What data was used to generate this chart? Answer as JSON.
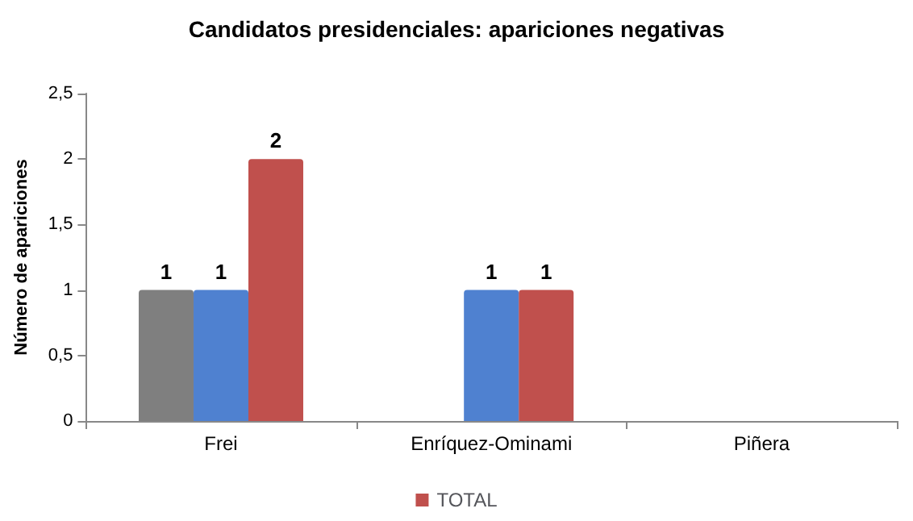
{
  "chart_data": {
    "type": "bar",
    "title": "Candidatos presidenciales: apariciones negativas",
    "ylabel": "Número de apariciones",
    "categories": [
      "Frei",
      "Enríquez-Ominami",
      "Piñera"
    ],
    "series": [
      {
        "color": "#7f7f7f",
        "values": [
          1,
          null,
          null
        ]
      },
      {
        "color": "#4f81d0",
        "values": [
          1,
          1,
          null
        ]
      },
      {
        "name": "TOTAL",
        "color": "#c0504d",
        "values": [
          2,
          1,
          null
        ]
      }
    ],
    "ylim": [
      0,
      2.5
    ],
    "yticks": [
      0,
      {
        "value": 0.5,
        "label": "0,5"
      },
      1,
      {
        "value": 1.5,
        "label": "1,5"
      },
      2,
      {
        "value": 2.5,
        "label": "2,5"
      }
    ],
    "data_labels": true,
    "grid": false,
    "legend": "bottom"
  }
}
